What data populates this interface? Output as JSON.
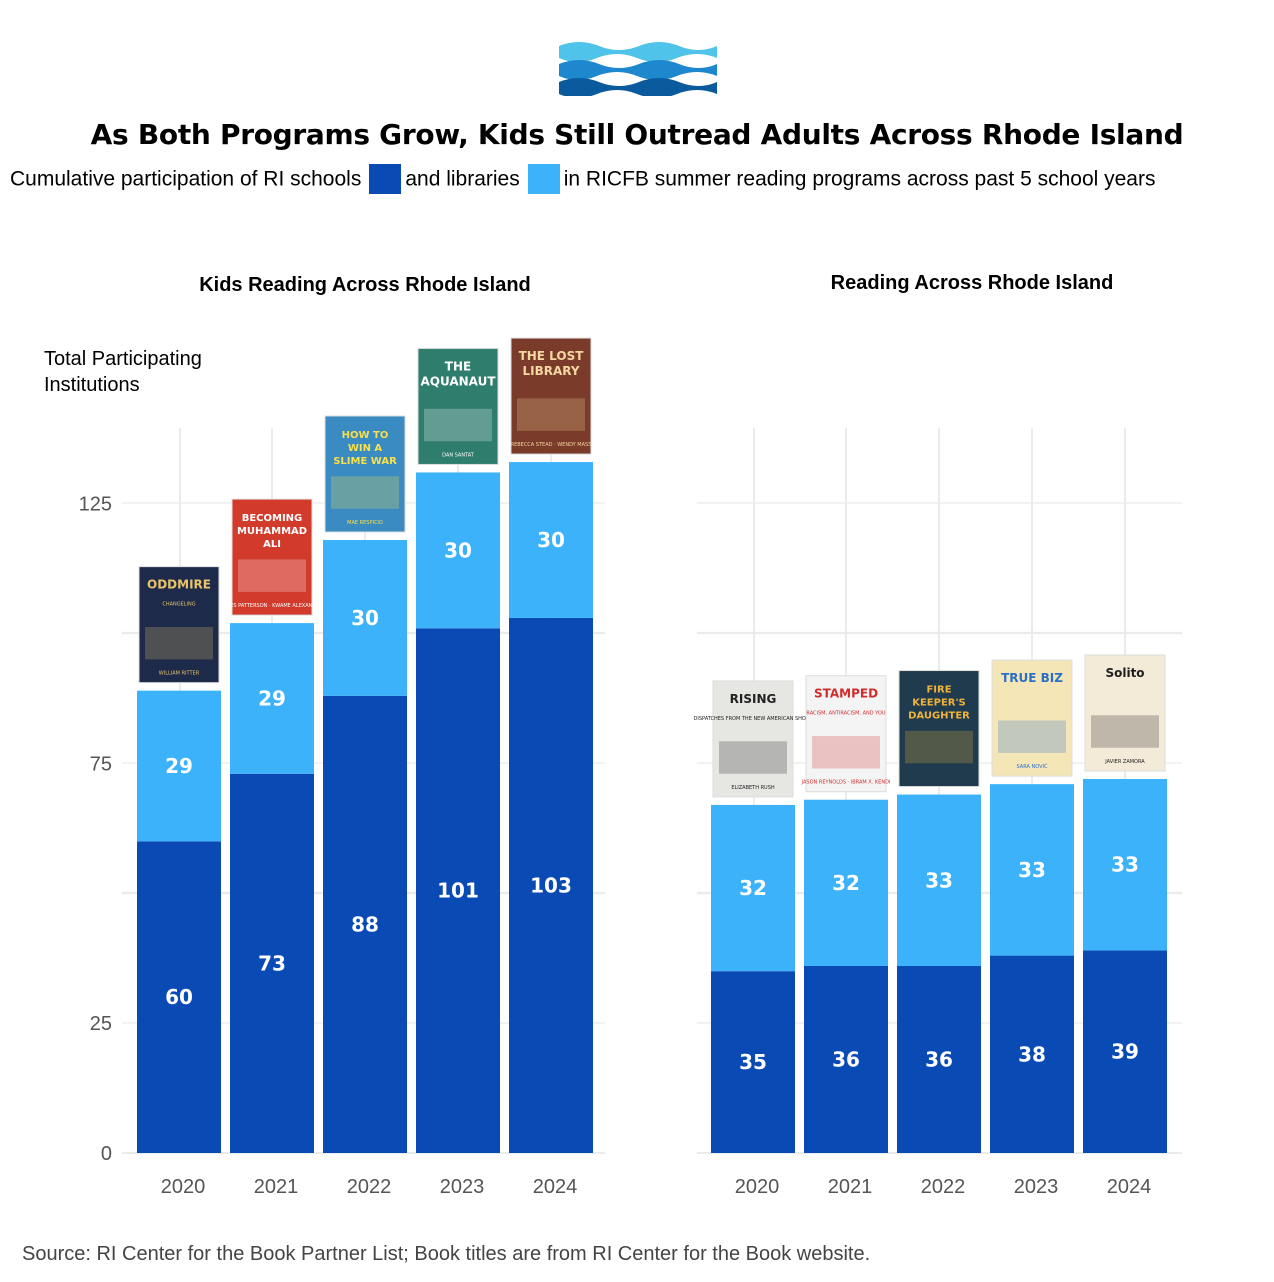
{
  "header": {
    "title": "As Both Programs Grow, Kids Still Outread Adults Across Rhode Island",
    "subtitle_part1": "Cumulative participation of RI schools",
    "subtitle_part2": "and libraries",
    "subtitle_part3": "in RICFB summer reading programs across past 5 school years"
  },
  "colors": {
    "schools": "#0a4ab5",
    "libraries": "#3cb2fb",
    "grid": "#ebebeb"
  },
  "logo": {
    "icon": "waves-icon",
    "colors": [
      "#4fc3ea",
      "#1e88cf",
      "#0c5a9e"
    ]
  },
  "y_axis_title": "Total Participating Institutions",
  "source": "Source: RI Center for the Book Partner List; Book titles are from RI Center for the Book website.",
  "chart_data": [
    {
      "type": "bar",
      "stacked": true,
      "title": "Kids Reading Across Rhode Island",
      "categories": [
        "2020",
        "2021",
        "2022",
        "2023",
        "2024"
      ],
      "series": [
        {
          "name": "schools",
          "color": "#0a4ab5",
          "values": [
            60,
            73,
            88,
            101,
            103
          ]
        },
        {
          "name": "libraries",
          "color": "#3cb2fb",
          "values": [
            29,
            29,
            30,
            30,
            30
          ]
        }
      ],
      "yticks": [
        0,
        25,
        75,
        125
      ],
      "ylim": [
        0,
        140
      ],
      "grid": true,
      "book_covers": [
        {
          "year": "2020",
          "title": "ODDMIRE",
          "subtitle": "CHANGELING",
          "author": "WILLIAM RITTER",
          "bg": "#1d2a4a",
          "fg": "#e9c46a"
        },
        {
          "year": "2021",
          "title": "BECOMING MUHAMMAD ALI",
          "subtitle": "",
          "author": "JAMES PATTERSON · KWAME ALEXANDER",
          "bg": "#d23a2c",
          "fg": "#ffffff"
        },
        {
          "year": "2022",
          "title": "HOW TO WIN A SLIME WAR",
          "subtitle": "",
          "author": "MAE RESPICIO",
          "bg": "#3a8bc2",
          "fg": "#f7e04b"
        },
        {
          "year": "2023",
          "title": "THE AQUANAUT",
          "subtitle": "",
          "author": "DAN SANTAT",
          "bg": "#2f7d6d",
          "fg": "#ffffff"
        },
        {
          "year": "2024",
          "title": "THE LOST LIBRARY",
          "subtitle": "",
          "author": "REBECCA STEAD · WENDY MASS",
          "bg": "#7a3b2a",
          "fg": "#f4d7a1"
        }
      ]
    },
    {
      "type": "bar",
      "stacked": true,
      "title": "Reading Across Rhode Island",
      "categories": [
        "2020",
        "2021",
        "2022",
        "2023",
        "2024"
      ],
      "series": [
        {
          "name": "schools",
          "color": "#0a4ab5",
          "values": [
            35,
            36,
            36,
            38,
            39
          ]
        },
        {
          "name": "libraries",
          "color": "#3cb2fb",
          "values": [
            32,
            32,
            33,
            33,
            33
          ]
        }
      ],
      "ylim": [
        0,
        90
      ],
      "grid": true,
      "book_covers": [
        {
          "year": "2020",
          "title": "RISING",
          "subtitle": "DISPATCHES FROM THE NEW AMERICAN SHORE",
          "author": "ELIZABETH RUSH",
          "bg": "#e6e6e3",
          "fg": "#222222"
        },
        {
          "year": "2021",
          "title": "STAMPED",
          "subtitle": "RACISM, ANTIRACISM, AND YOU",
          "author": "JASON REYNOLDS · IBRAM X. KENDI",
          "bg": "#f4f4f4",
          "fg": "#d12c2c"
        },
        {
          "year": "2022",
          "title": "FIRE KEEPER'S DAUGHTER",
          "subtitle": "",
          "author": "",
          "bg": "#1f3b4d",
          "fg": "#f0b33a"
        },
        {
          "year": "2023",
          "title": "TRUE BIZ",
          "subtitle": "",
          "author": "SARA NOVIĆ",
          "bg": "#f5e6b8",
          "fg": "#2b6fc7"
        },
        {
          "year": "2024",
          "title": "Solito",
          "subtitle": "",
          "author": "JAVIER ZAMORA",
          "bg": "#f3ead8",
          "fg": "#1e1e1e"
        }
      ]
    }
  ]
}
